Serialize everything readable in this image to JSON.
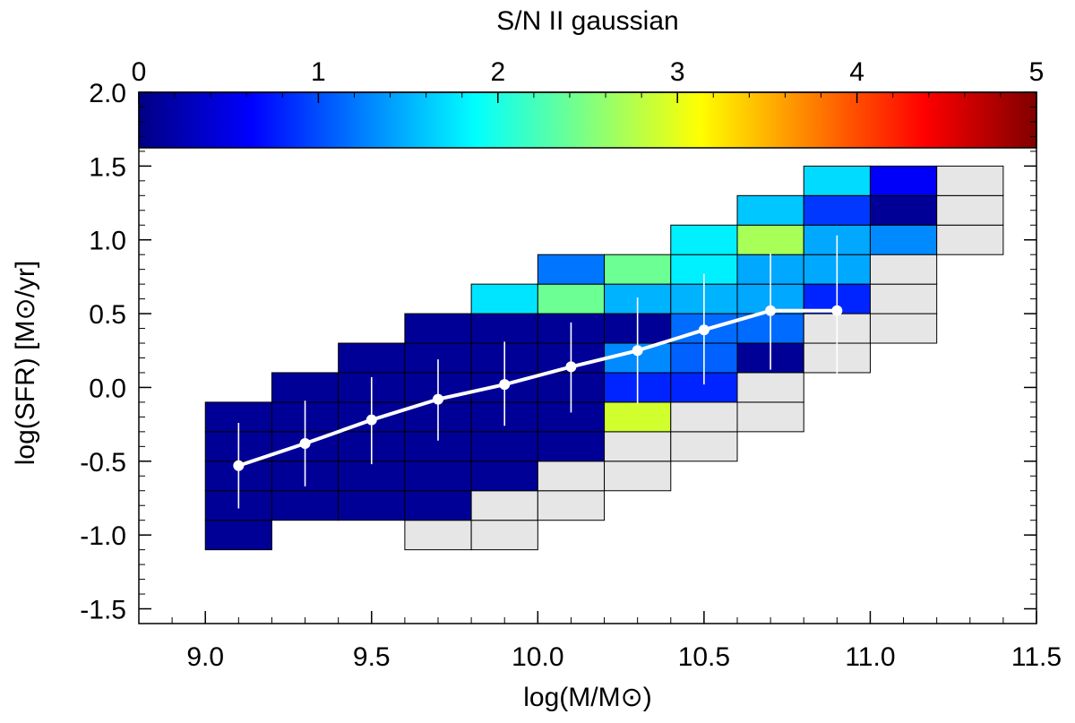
{
  "colorbar": {
    "title": "S/N II gaussian",
    "range": [
      0,
      5
    ],
    "ticks": [
      0,
      1,
      2,
      3,
      4,
      5
    ],
    "tick_labels": [
      "0",
      "1",
      "2",
      "3",
      "4",
      "5"
    ],
    "colormap": "jet"
  },
  "chart_data": {
    "type": "heatmap",
    "xlabel": "log(M/M⊙)",
    "ylabel": "log(SFR) [M⊙/yr]",
    "xlim": [
      8.8,
      11.5
    ],
    "ylim": [
      -1.6,
      2.0
    ],
    "x_ticks": [
      9.0,
      9.5,
      10.0,
      10.5,
      11.0,
      11.5
    ],
    "x_tick_labels": [
      "9.0",
      "9.5",
      "10.0",
      "10.5",
      "11.0",
      "11.5"
    ],
    "y_ticks": [
      -1.5,
      -1.0,
      -0.5,
      0.0,
      0.5,
      1.0,
      1.5,
      2.0
    ],
    "y_tick_labels": [
      "-1.5",
      "-1.0",
      "-0.5",
      "0.0",
      "0.5",
      "1.0",
      "1.5",
      "2.0"
    ],
    "bin_size_x": 0.2,
    "bin_size_y": 0.2,
    "empty_color": "#e6e6e6",
    "cells": [
      {
        "x0": 9.0,
        "y0": -1.1,
        "sn": 0.1
      },
      {
        "x0": 9.0,
        "y0": -0.9,
        "sn": 0.1
      },
      {
        "x0": 9.0,
        "y0": -0.7,
        "sn": 0.1
      },
      {
        "x0": 9.0,
        "y0": -0.5,
        "sn": 0.1
      },
      {
        "x0": 9.0,
        "y0": -0.3,
        "sn": 0.1
      },
      {
        "x0": 9.2,
        "y0": -0.9,
        "sn": 0.1
      },
      {
        "x0": 9.2,
        "y0": -0.7,
        "sn": 0.1
      },
      {
        "x0": 9.2,
        "y0": -0.5,
        "sn": 0.1
      },
      {
        "x0": 9.2,
        "y0": -0.3,
        "sn": 0.1
      },
      {
        "x0": 9.2,
        "y0": -0.1,
        "sn": 0.1
      },
      {
        "x0": 9.4,
        "y0": -0.9,
        "sn": 0.1
      },
      {
        "x0": 9.4,
        "y0": -0.7,
        "sn": 0.1
      },
      {
        "x0": 9.4,
        "y0": -0.5,
        "sn": 0.1
      },
      {
        "x0": 9.4,
        "y0": -0.3,
        "sn": 0.1
      },
      {
        "x0": 9.4,
        "y0": -0.1,
        "sn": 0.1
      },
      {
        "x0": 9.4,
        "y0": 0.1,
        "sn": 0.1
      },
      {
        "x0": 9.6,
        "y0": -1.1,
        "sn": null
      },
      {
        "x0": 9.6,
        "y0": -0.9,
        "sn": 0.1
      },
      {
        "x0": 9.6,
        "y0": -0.7,
        "sn": 0.1
      },
      {
        "x0": 9.6,
        "y0": -0.5,
        "sn": 0.1
      },
      {
        "x0": 9.6,
        "y0": -0.3,
        "sn": 0.1
      },
      {
        "x0": 9.6,
        "y0": -0.1,
        "sn": 0.1
      },
      {
        "x0": 9.6,
        "y0": 0.1,
        "sn": 0.1
      },
      {
        "x0": 9.6,
        "y0": 0.3,
        "sn": 0.1
      },
      {
        "x0": 9.8,
        "y0": -1.1,
        "sn": null
      },
      {
        "x0": 9.8,
        "y0": -0.9,
        "sn": null
      },
      {
        "x0": 9.8,
        "y0": -0.7,
        "sn": 0.1
      },
      {
        "x0": 9.8,
        "y0": -0.5,
        "sn": 0.1
      },
      {
        "x0": 9.8,
        "y0": -0.3,
        "sn": 0.1
      },
      {
        "x0": 9.8,
        "y0": -0.1,
        "sn": 0.1
      },
      {
        "x0": 9.8,
        "y0": 0.1,
        "sn": 0.1
      },
      {
        "x0": 9.8,
        "y0": 0.3,
        "sn": 0.1
      },
      {
        "x0": 9.8,
        "y0": 0.5,
        "sn": 1.75
      },
      {
        "x0": 10.0,
        "y0": -0.9,
        "sn": null
      },
      {
        "x0": 10.0,
        "y0": -0.7,
        "sn": null
      },
      {
        "x0": 10.0,
        "y0": -0.5,
        "sn": 0.1
      },
      {
        "x0": 10.0,
        "y0": -0.3,
        "sn": 0.1
      },
      {
        "x0": 10.0,
        "y0": -0.1,
        "sn": 0.1
      },
      {
        "x0": 10.0,
        "y0": 0.1,
        "sn": 0.1
      },
      {
        "x0": 10.0,
        "y0": 0.3,
        "sn": 0.1
      },
      {
        "x0": 10.0,
        "y0": 0.5,
        "sn": 2.4
      },
      {
        "x0": 10.0,
        "y0": 0.7,
        "sn": 1.2
      },
      {
        "x0": 10.2,
        "y0": -0.7,
        "sn": null
      },
      {
        "x0": 10.2,
        "y0": -0.5,
        "sn": null
      },
      {
        "x0": 10.2,
        "y0": -0.3,
        "sn": 2.9
      },
      {
        "x0": 10.2,
        "y0": -0.1,
        "sn": 0.8
      },
      {
        "x0": 10.2,
        "y0": 0.1,
        "sn": 1.3
      },
      {
        "x0": 10.2,
        "y0": 0.3,
        "sn": 0.1
      },
      {
        "x0": 10.2,
        "y0": 0.5,
        "sn": 1.5
      },
      {
        "x0": 10.2,
        "y0": 0.7,
        "sn": 2.4
      },
      {
        "x0": 10.4,
        "y0": -0.5,
        "sn": null
      },
      {
        "x0": 10.4,
        "y0": -0.3,
        "sn": null
      },
      {
        "x0": 10.4,
        "y0": -0.1,
        "sn": 0.8
      },
      {
        "x0": 10.4,
        "y0": 0.1,
        "sn": 1.1
      },
      {
        "x0": 10.4,
        "y0": 0.3,
        "sn": 1.15
      },
      {
        "x0": 10.4,
        "y0": 0.5,
        "sn": 1.5
      },
      {
        "x0": 10.4,
        "y0": 0.7,
        "sn": 1.8
      },
      {
        "x0": 10.4,
        "y0": 0.9,
        "sn": 1.8
      },
      {
        "x0": 10.6,
        "y0": -0.3,
        "sn": null
      },
      {
        "x0": 10.6,
        "y0": -0.1,
        "sn": null
      },
      {
        "x0": 10.6,
        "y0": 0.1,
        "sn": 0.1
      },
      {
        "x0": 10.6,
        "y0": 0.3,
        "sn": 1.15
      },
      {
        "x0": 10.6,
        "y0": 0.5,
        "sn": 1.45
      },
      {
        "x0": 10.6,
        "y0": 0.7,
        "sn": 1.45
      },
      {
        "x0": 10.6,
        "y0": 0.9,
        "sn": 2.7
      },
      {
        "x0": 10.6,
        "y0": 1.1,
        "sn": 1.6
      },
      {
        "x0": 10.8,
        "y0": 0.1,
        "sn": null
      },
      {
        "x0": 10.8,
        "y0": 0.3,
        "sn": null
      },
      {
        "x0": 10.8,
        "y0": 0.5,
        "sn": 0.8
      },
      {
        "x0": 10.8,
        "y0": 0.7,
        "sn": 1.45
      },
      {
        "x0": 10.8,
        "y0": 0.9,
        "sn": 1.45
      },
      {
        "x0": 10.8,
        "y0": 1.1,
        "sn": 0.9
      },
      {
        "x0": 10.8,
        "y0": 1.3,
        "sn": 1.7
      },
      {
        "x0": 11.0,
        "y0": 0.3,
        "sn": null
      },
      {
        "x0": 11.0,
        "y0": 0.5,
        "sn": null
      },
      {
        "x0": 11.0,
        "y0": 0.7,
        "sn": null
      },
      {
        "x0": 11.0,
        "y0": 0.9,
        "sn": 1.3
      },
      {
        "x0": 11.0,
        "y0": 1.1,
        "sn": 0.1
      },
      {
        "x0": 11.0,
        "y0": 1.3,
        "sn": 0.6
      },
      {
        "x0": 11.2,
        "y0": 0.9,
        "sn": null
      },
      {
        "x0": 11.2,
        "y0": 1.1,
        "sn": null
      },
      {
        "x0": 11.2,
        "y0": 1.3,
        "sn": null
      }
    ],
    "median_line": {
      "x": [
        9.1,
        9.3,
        9.5,
        9.7,
        9.9,
        10.1,
        10.3,
        10.5,
        10.7,
        10.9
      ],
      "y": [
        -0.53,
        -0.38,
        -0.22,
        -0.08,
        0.02,
        0.14,
        0.25,
        0.39,
        0.52,
        0.52
      ],
      "err_low": [
        -0.82,
        -0.67,
        -0.52,
        -0.36,
        -0.26,
        -0.17,
        -0.11,
        0.02,
        0.12,
        0.09
      ],
      "err_high": [
        -0.24,
        -0.09,
        0.07,
        0.19,
        0.31,
        0.44,
        0.61,
        0.77,
        0.91,
        1.03
      ],
      "color": "#ffffff"
    }
  }
}
